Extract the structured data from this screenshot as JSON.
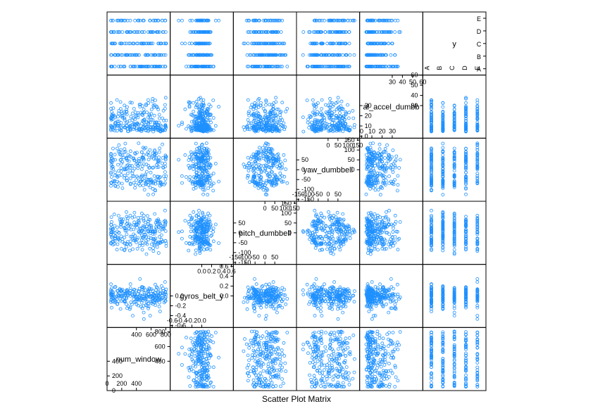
{
  "chart_data": {
    "type": "scatter",
    "title": "Scatter Plot Matrix",
    "color": "#1E90FF",
    "marker": "open-circle",
    "variables": [
      {
        "name": "num_window",
        "range": [
          0,
          860
        ],
        "ticks_low": [
          "0",
          "200",
          "400"
        ],
        "ticks_low_values": [
          0,
          200,
          400
        ],
        "ticks_high": [
          "400",
          "600",
          "800"
        ],
        "ticks_high_values": [
          400,
          600,
          800
        ]
      },
      {
        "name": "gyros_belt_y",
        "range": [
          -0.64,
          0.64
        ],
        "ticks_low": [
          "-0.6",
          "-0.4",
          "-0.2",
          "0.0"
        ],
        "ticks_low_values": [
          -0.6,
          -0.4,
          -0.2,
          0.0
        ],
        "ticks_high": [
          "0.0",
          "0.2",
          "0.4",
          "0.6"
        ],
        "ticks_high_values": [
          0.0,
          0.2,
          0.4,
          0.6
        ]
      },
      {
        "name": "pitch_dumbbell",
        "range": [
          -160,
          160
        ],
        "ticks_low": [
          "-150",
          "-100",
          "-50",
          "0",
          "50"
        ],
        "ticks_low_values": [
          -150,
          -100,
          -50,
          0,
          50
        ],
        "ticks_high": [
          "0",
          "50",
          "100",
          "150"
        ],
        "ticks_high_values": [
          0,
          50,
          100,
          150
        ]
      },
      {
        "name": "yaw_dumbbell",
        "range": [
          -160,
          160
        ],
        "ticks_low": [
          "-150",
          "-100",
          "-50",
          "0",
          "50"
        ],
        "ticks_low_values": [
          -150,
          -100,
          -50,
          0,
          50
        ],
        "ticks_high": [
          "0",
          "50",
          "100",
          "150"
        ],
        "ticks_high_values": [
          0,
          50,
          100,
          150
        ]
      },
      {
        "name": "total_accel_dumbbell",
        "label_visible": "al_accel_dumbb",
        "range": [
          -2,
          60
        ],
        "ticks_low": [
          "0",
          "10",
          "20",
          "30"
        ],
        "ticks_low_values": [
          0,
          10,
          20,
          30
        ],
        "ticks_high": [
          "30",
          "40",
          "50",
          "60"
        ],
        "ticks_high_values": [
          30,
          40,
          50,
          60
        ]
      },
      {
        "name": "y",
        "categories": [
          "A",
          "B",
          "C",
          "D",
          "E"
        ]
      }
    ]
  }
}
